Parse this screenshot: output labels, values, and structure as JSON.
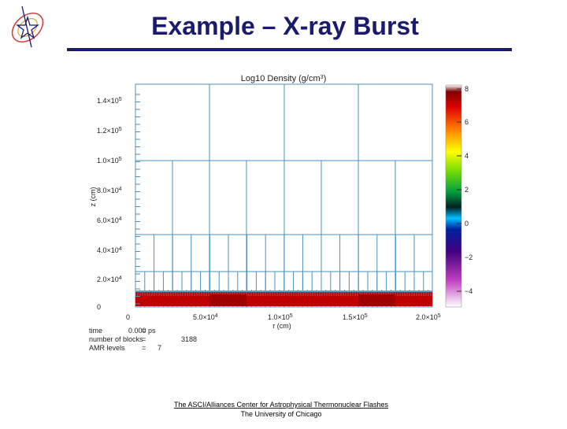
{
  "header": {
    "title": "Example – X-ray Burst"
  },
  "figure": {
    "title": {
      "text": "Log10 Density (g/cm",
      "sup": "3",
      "close": ")"
    },
    "y_axis": {
      "label": "z (cm)",
      "ticks": [
        {
          "text": "1.4×10",
          "sup": "5"
        },
        {
          "text": "1.2×10",
          "sup": "5"
        },
        {
          "text": "1.0×10",
          "sup": "5"
        },
        {
          "text": "8.0×10",
          "sup": "4"
        },
        {
          "text": "6.0×10",
          "sup": "4"
        },
        {
          "text": "4.0×10",
          "sup": "4"
        },
        {
          "text": "2.0×10",
          "sup": "4"
        },
        {
          "text": "0",
          "sup": ""
        }
      ]
    },
    "x_axis": {
      "label": "r (cm)",
      "ticks": [
        {
          "text": "0",
          "sup": ""
        },
        {
          "text": "5.0×10",
          "sup": "4"
        },
        {
          "text": "1.0×10",
          "sup": "5"
        },
        {
          "text": "1.5×10",
          "sup": "5"
        },
        {
          "text": "2.0×10",
          "sup": "5"
        }
      ]
    },
    "colorbar": {
      "ticks": [
        "8",
        "6",
        "4",
        "2",
        "0",
        "−2",
        "−4"
      ]
    },
    "info": [
      {
        "label": "time",
        "value": "0.000 ps"
      },
      {
        "label": "number of blocks",
        "value": "3188"
      },
      {
        "label": "AMR levels",
        "value": "7"
      }
    ]
  },
  "footer": {
    "line1": "The ASCI/Alliances Center for Astrophysical Thermonuclear Flashes",
    "line2": "The University of Chicago"
  }
}
